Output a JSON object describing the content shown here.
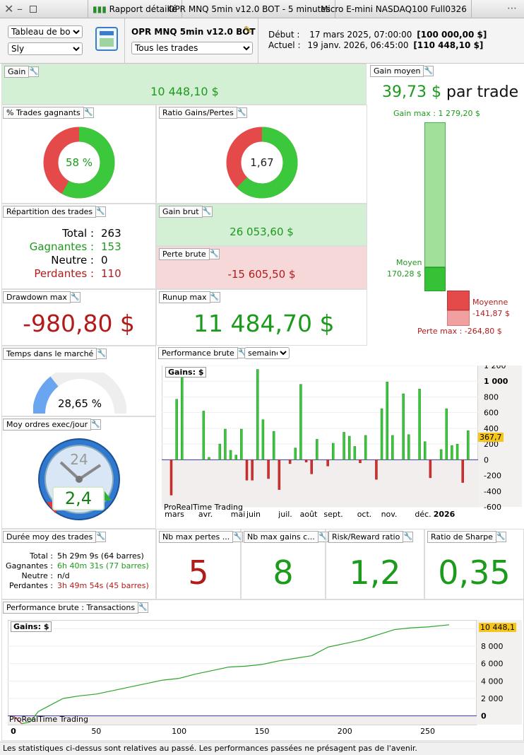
{
  "window": {
    "tabs": [
      "Rapport détaillé",
      "OPR MNQ 5min v12.0 BOT - 5 minutes",
      "Micro E-mini NASDAQ100 Full0326"
    ]
  },
  "header": {
    "view_select": "Tableau de bord",
    "user_select": "Sly",
    "strategy": "OPR MNQ 5min v12.0 BOT",
    "trades_select": "Tous les trades",
    "start_label": "Début :",
    "start_value": "17 mars 2025, 07:00:00",
    "start_capital": "[100 000,00 $]",
    "current_label": "Actuel :",
    "current_value": "19 janv. 2026, 06:45:00",
    "current_capital": "[110 448,10 $]"
  },
  "gain": {
    "label": "Gain",
    "value": "10 448,10 $"
  },
  "avg_gain": {
    "label": "Gain moyen",
    "value": "39,73 $",
    "suffix": "par trade",
    "max_label": "Gain max : 1 279,20 $",
    "mean_label": "Moyen",
    "mean_value": "170,28 $",
    "loss_mean_label": "Moyenne",
    "loss_mean_value": "-141,87 $",
    "loss_max_label": "Perte max : -264,80 $"
  },
  "winrate": {
    "label": "% Trades gagnants",
    "value": "58 %",
    "pct": 58
  },
  "ratio": {
    "label": "Ratio Gains/Pertes",
    "value": "1,67",
    "pct": 62.5
  },
  "repartition": {
    "label": "Répartition des trades",
    "total_label": "Total :",
    "total": "263",
    "win_label": "Gagnantes :",
    "win": "153",
    "neutral_label": "Neutre :",
    "neutral": "0",
    "loss_label": "Perdantes :",
    "loss": "110"
  },
  "gross_gain": {
    "label": "Gain brut",
    "value": "26 053,60 $"
  },
  "gross_loss": {
    "label": "Perte brute",
    "value": "-15 605,50 $"
  },
  "drawdown": {
    "label": "Drawdown max",
    "value": "-980,80 $"
  },
  "runup": {
    "label": "Runup max",
    "value": "11 484,70 $"
  },
  "time_market": {
    "label": "Temps dans le marché",
    "value": "28,65 %",
    "pct": 28.65
  },
  "orders": {
    "label": "Moy ordres exec/jour",
    "value": "2,4",
    "clock": "24"
  },
  "perf_week": {
    "label": "Performance brute",
    "select": "semaine",
    "gains_label": "Gains: $",
    "watermark": "ProRealTime Trading",
    "current": "367,7"
  },
  "duration": {
    "label": "Durée moy des trades",
    "total_label": "Total :",
    "total": "5h 29m 9s (64 barres)",
    "win_label": "Gagnantes :",
    "win": "6h 40m 31s (77 barres)",
    "neutral_label": "Neutre :",
    "neutral": "n/d",
    "loss_label": "Perdantes :",
    "loss": "3h 49m 54s (45 barres)"
  },
  "max_losses": {
    "label": "Nb max pertes ...",
    "value": "5"
  },
  "max_gains": {
    "label": "Nb max gains c...",
    "value": "8"
  },
  "risk_reward": {
    "label": "Risk/Reward ratio",
    "value": "1,2"
  },
  "sharpe": {
    "label": "Ratio de Sharpe",
    "value": "0,35"
  },
  "perf_tx": {
    "label": "Performance brute : Transactions",
    "gains_label": "Gains: $",
    "watermark": "ProRealTime Trading",
    "current": "10 448,1"
  },
  "footer": "Les statistiques ci-dessus sont relatives au passé. Les performances passées ne présagent pas de l'avenir.",
  "chart_data": [
    {
      "type": "bar",
      "title": "Performance brute",
      "ylabel": "Gains: $",
      "ylim": [
        -600,
        1200
      ],
      "x_ticks": [
        "mars",
        "avr.",
        "mai",
        "juin",
        "juil.",
        "août",
        "sept.",
        "oct.",
        "nov.",
        "déc.",
        "2026"
      ],
      "y_ticks": [
        "1 200",
        "1 000",
        "800",
        "600",
        "400",
        "200",
        "0",
        "-200",
        "-400",
        "-600"
      ],
      "values": [
        -450,
        770,
        1080,
        0,
        0,
        0,
        620,
        30,
        0,
        200,
        390,
        120,
        60,
        390,
        -260,
        -260,
        1150,
        510,
        -240,
        360,
        -380,
        0,
        -50,
        150,
        960,
        -30,
        -180,
        260,
        0,
        -80,
        210,
        0,
        350,
        300,
        170,
        -40,
        310,
        0,
        -250,
        650,
        990,
        310,
        0,
        840,
        320,
        0,
        900,
        230,
        -230,
        0,
        130,
        650,
        180,
        200,
        -290,
        370
      ]
    },
    {
      "type": "line",
      "title": "Performance brute : Transactions",
      "ylabel": "Gains: $",
      "ylim": [
        -1000,
        11000
      ],
      "x_ticks": [
        "0",
        "50",
        "100",
        "150",
        "200",
        "250"
      ],
      "y_ticks": [
        "10 000",
        "8 000",
        "6 000",
        "4 000",
        "2 000",
        "0"
      ],
      "points": [
        [
          0,
          0
        ],
        [
          5,
          -900
        ],
        [
          10,
          -700
        ],
        [
          15,
          500
        ],
        [
          20,
          1000
        ],
        [
          30,
          2000
        ],
        [
          40,
          2300
        ],
        [
          50,
          2500
        ],
        [
          60,
          2900
        ],
        [
          70,
          3300
        ],
        [
          80,
          3700
        ],
        [
          90,
          4100
        ],
        [
          100,
          4300
        ],
        [
          110,
          4800
        ],
        [
          120,
          5200
        ],
        [
          130,
          5600
        ],
        [
          140,
          5700
        ],
        [
          150,
          5900
        ],
        [
          160,
          6300
        ],
        [
          170,
          6600
        ],
        [
          180,
          6900
        ],
        [
          190,
          7900
        ],
        [
          200,
          8300
        ],
        [
          210,
          8700
        ],
        [
          220,
          9300
        ],
        [
          230,
          9900
        ],
        [
          240,
          10100
        ],
        [
          250,
          10200
        ],
        [
          263,
          10448
        ]
      ]
    }
  ]
}
